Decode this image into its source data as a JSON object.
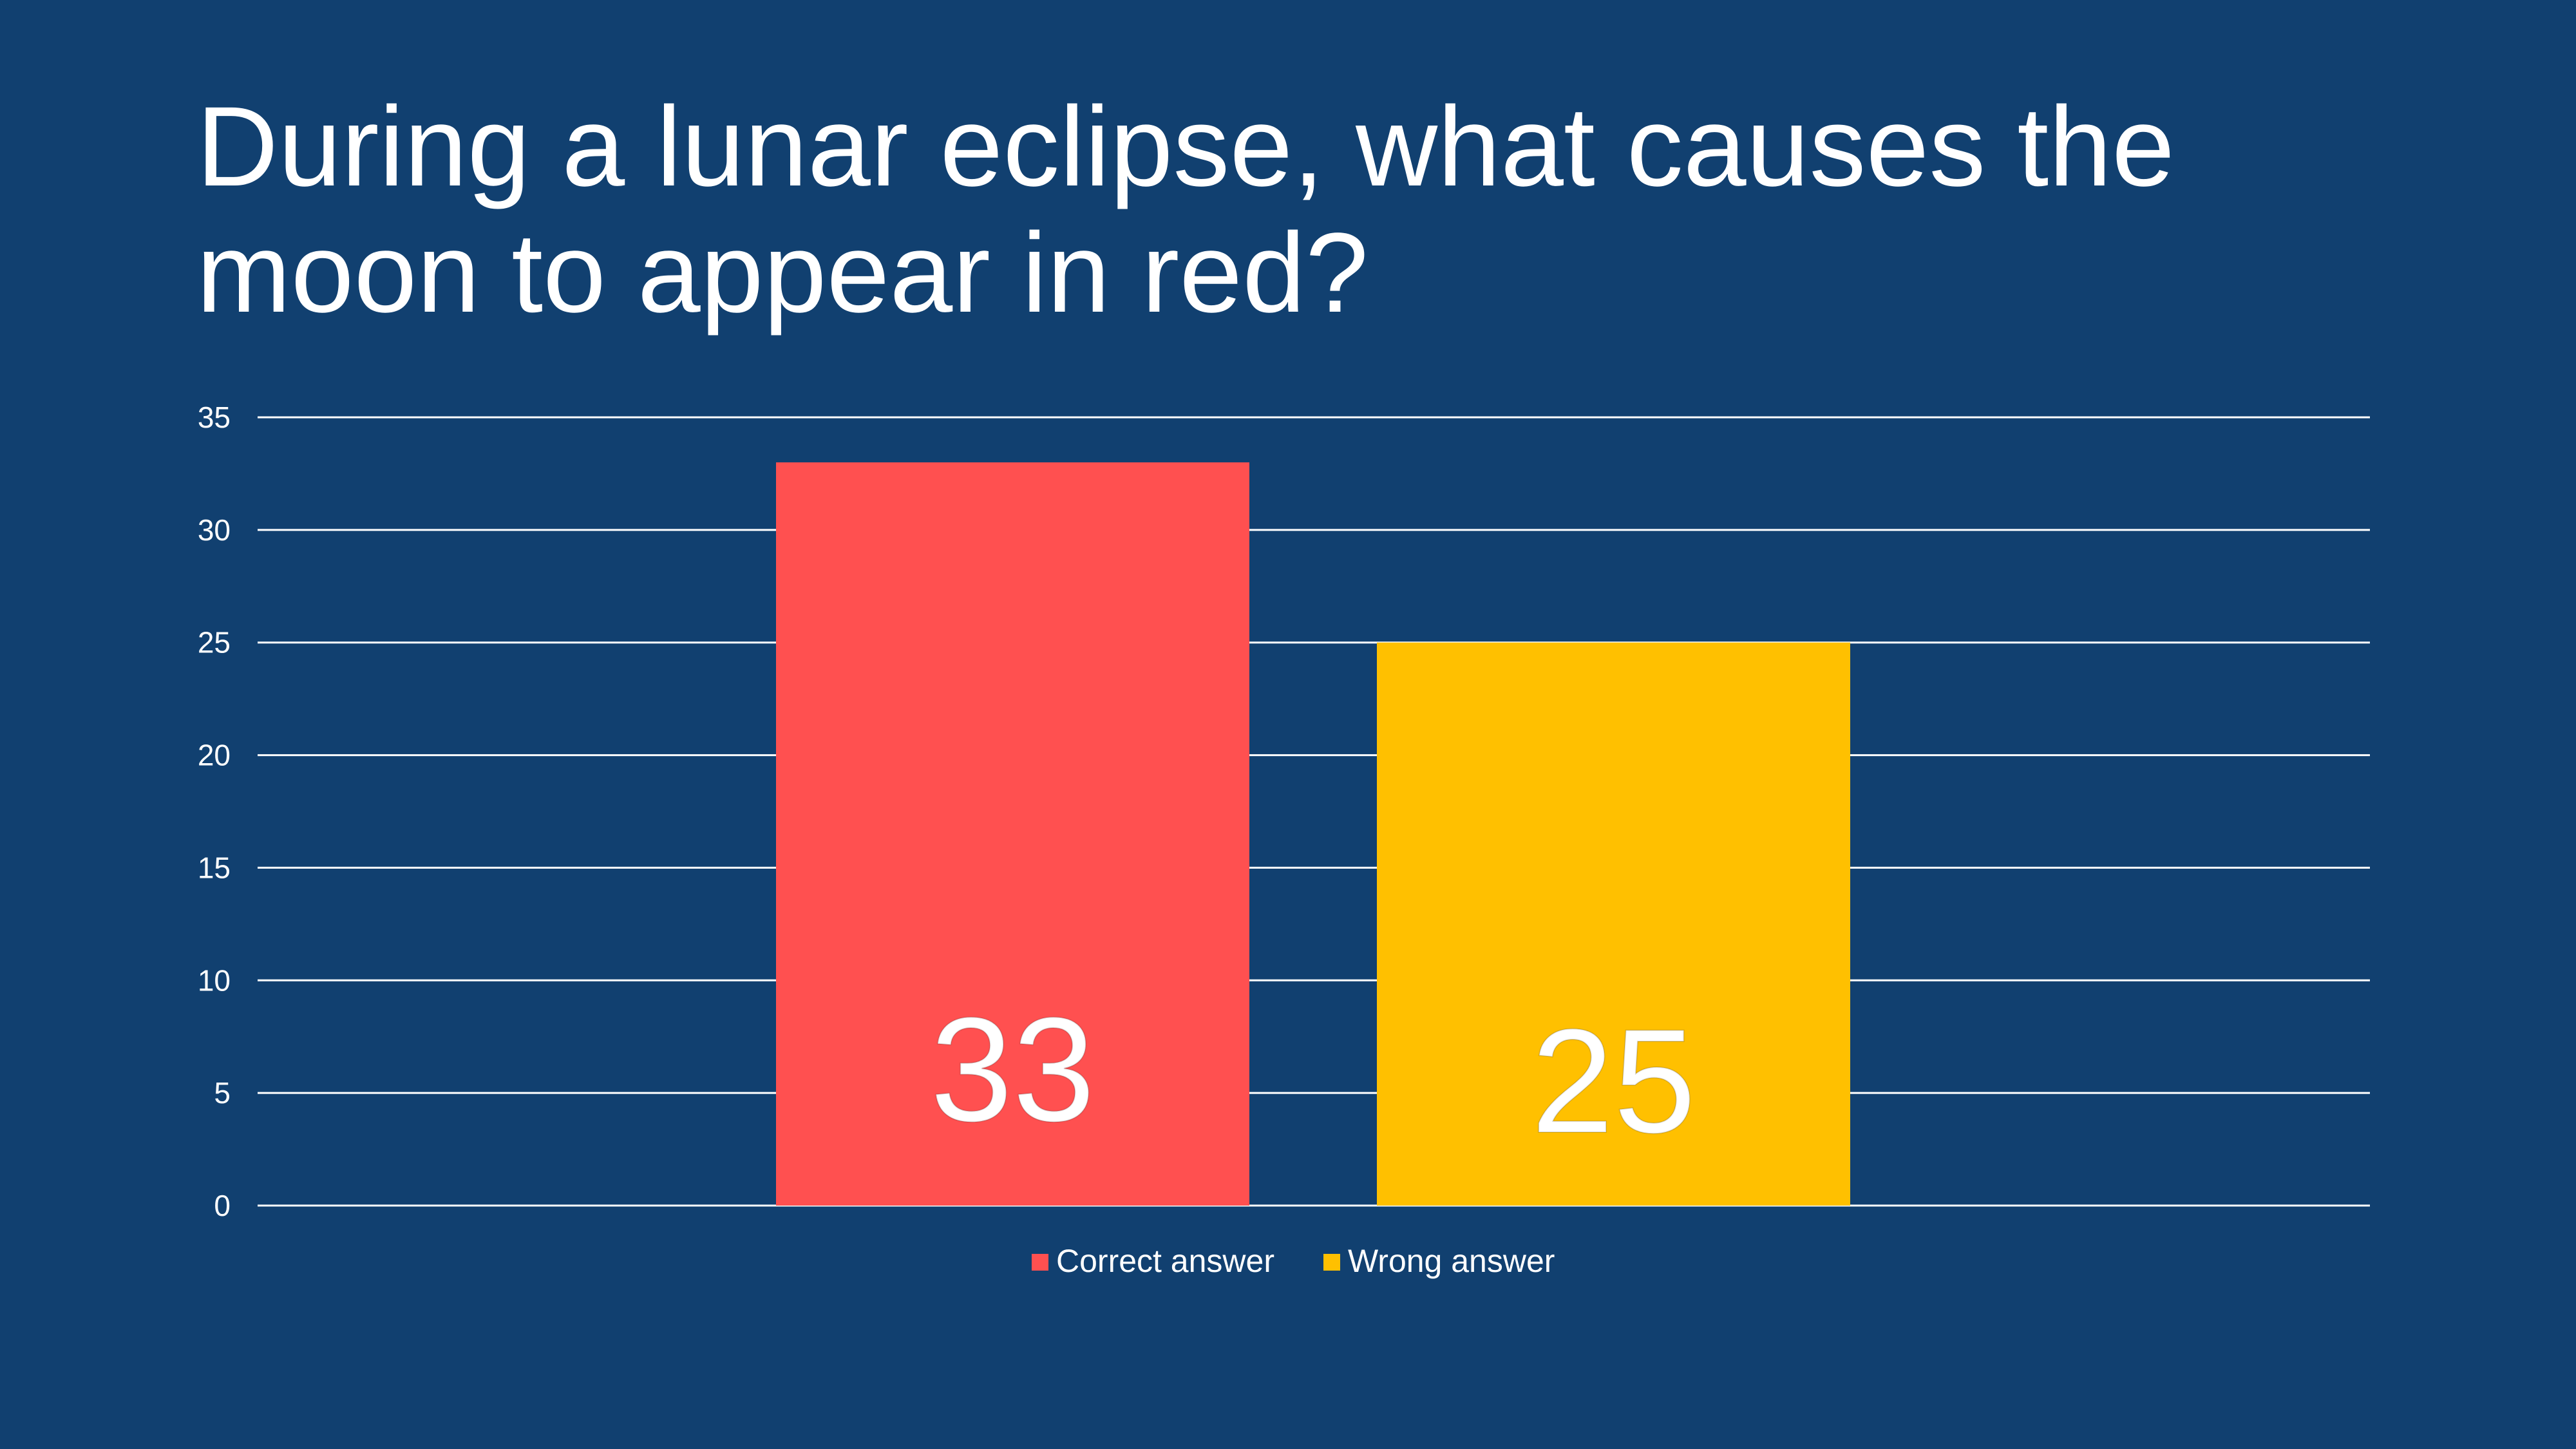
{
  "slide": {
    "title": "During a lunar eclipse, what causes the moon to appear in red?",
    "background_color": "#114070"
  },
  "chart_data": {
    "type": "bar",
    "title": "During a lunar eclipse, what causes the moon to appear in red?",
    "xlabel": "",
    "ylabel": "",
    "ylim": [
      0,
      35
    ],
    "yticks": [
      0,
      5,
      10,
      15,
      20,
      25,
      30,
      35
    ],
    "grid": true,
    "legend_position": "bottom",
    "series": [
      {
        "name": "Correct answer",
        "values": [
          33
        ],
        "color": "#FF5050",
        "label": "33"
      },
      {
        "name": "Wrong answer",
        "values": [
          25
        ],
        "color": "#FFC000",
        "label": "25"
      }
    ]
  }
}
